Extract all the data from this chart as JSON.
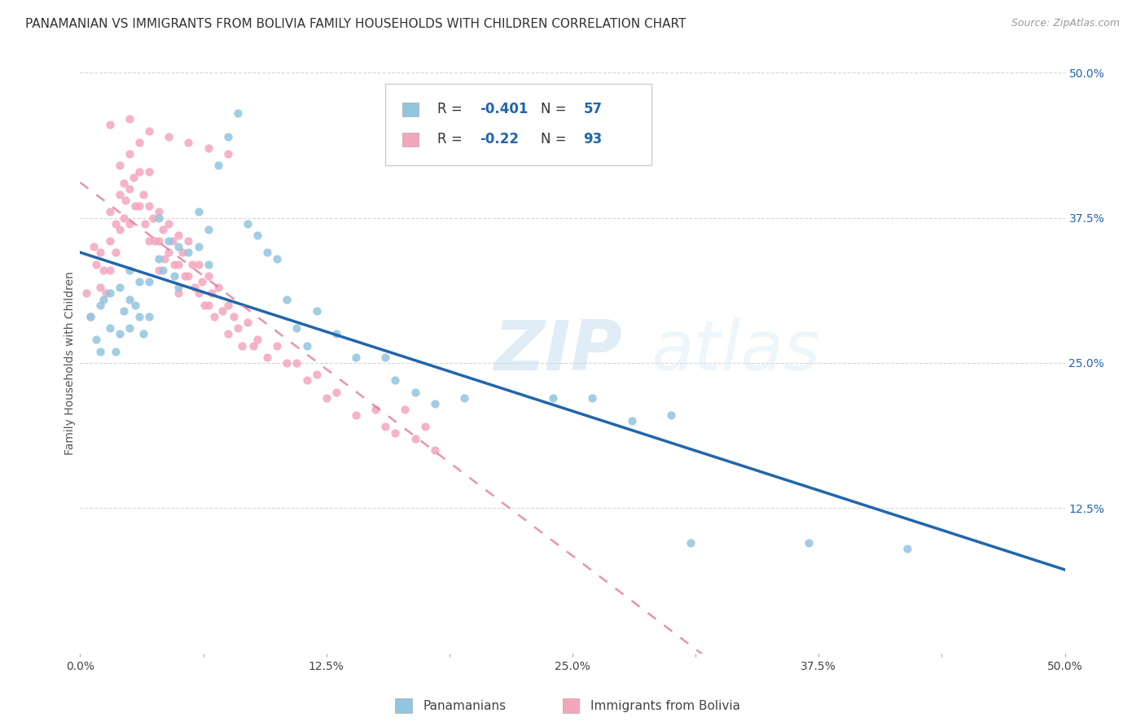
{
  "title": "PANAMANIAN VS IMMIGRANTS FROM BOLIVIA FAMILY HOUSEHOLDS WITH CHILDREN CORRELATION CHART",
  "source": "Source: ZipAtlas.com",
  "ylabel": "Family Households with Children",
  "xlim": [
    0.0,
    0.5
  ],
  "ylim": [
    0.0,
    0.5
  ],
  "xtick_labels": [
    "0.0%",
    "",
    "12.5%",
    "",
    "25.0%",
    "",
    "37.5%",
    "",
    "50.0%"
  ],
  "xtick_vals": [
    0.0,
    0.0625,
    0.125,
    0.1875,
    0.25,
    0.3125,
    0.375,
    0.4375,
    0.5
  ],
  "right_ytick_labels": [
    "50.0%",
    "37.5%",
    "25.0%",
    "12.5%"
  ],
  "right_ytick_vals": [
    0.5,
    0.375,
    0.25,
    0.125
  ],
  "blue_color": "#92c5de",
  "pink_color": "#f4a6bd",
  "blue_line_color": "#2166ac",
  "pink_line_color": "#e07090",
  "r_blue": -0.401,
  "n_blue": 57,
  "r_pink": -0.22,
  "n_pink": 93,
  "blue_scatter_x": [
    0.005,
    0.008,
    0.01,
    0.01,
    0.012,
    0.015,
    0.015,
    0.018,
    0.02,
    0.02,
    0.022,
    0.025,
    0.025,
    0.025,
    0.028,
    0.03,
    0.03,
    0.032,
    0.035,
    0.035,
    0.04,
    0.04,
    0.042,
    0.045,
    0.048,
    0.05,
    0.05,
    0.055,
    0.06,
    0.06,
    0.065,
    0.065,
    0.07,
    0.075,
    0.08,
    0.085,
    0.09,
    0.095,
    0.1,
    0.105,
    0.11,
    0.115,
    0.12,
    0.13,
    0.14,
    0.155,
    0.16,
    0.17,
    0.18,
    0.195,
    0.24,
    0.26,
    0.28,
    0.3,
    0.31,
    0.37,
    0.42
  ],
  "blue_scatter_y": [
    0.29,
    0.27,
    0.3,
    0.26,
    0.305,
    0.31,
    0.28,
    0.26,
    0.315,
    0.275,
    0.295,
    0.33,
    0.305,
    0.28,
    0.3,
    0.32,
    0.29,
    0.275,
    0.32,
    0.29,
    0.375,
    0.34,
    0.33,
    0.355,
    0.325,
    0.35,
    0.315,
    0.345,
    0.38,
    0.35,
    0.365,
    0.335,
    0.42,
    0.445,
    0.465,
    0.37,
    0.36,
    0.345,
    0.34,
    0.305,
    0.28,
    0.265,
    0.295,
    0.275,
    0.255,
    0.255,
    0.235,
    0.225,
    0.215,
    0.22,
    0.22,
    0.22,
    0.2,
    0.205,
    0.095,
    0.095,
    0.09
  ],
  "pink_scatter_x": [
    0.003,
    0.005,
    0.007,
    0.008,
    0.01,
    0.01,
    0.012,
    0.013,
    0.015,
    0.015,
    0.015,
    0.018,
    0.018,
    0.02,
    0.02,
    0.02,
    0.022,
    0.022,
    0.023,
    0.025,
    0.025,
    0.025,
    0.027,
    0.028,
    0.03,
    0.03,
    0.03,
    0.032,
    0.033,
    0.035,
    0.035,
    0.035,
    0.037,
    0.038,
    0.04,
    0.04,
    0.04,
    0.042,
    0.043,
    0.045,
    0.045,
    0.047,
    0.048,
    0.05,
    0.05,
    0.05,
    0.052,
    0.053,
    0.055,
    0.055,
    0.057,
    0.058,
    0.06,
    0.06,
    0.062,
    0.063,
    0.065,
    0.065,
    0.067,
    0.068,
    0.07,
    0.072,
    0.075,
    0.075,
    0.078,
    0.08,
    0.082,
    0.085,
    0.088,
    0.09,
    0.095,
    0.1,
    0.105,
    0.11,
    0.115,
    0.12,
    0.125,
    0.13,
    0.14,
    0.15,
    0.155,
    0.16,
    0.165,
    0.17,
    0.175,
    0.18,
    0.015,
    0.025,
    0.035,
    0.045,
    0.055,
    0.065,
    0.075
  ],
  "pink_scatter_y": [
    0.31,
    0.29,
    0.35,
    0.335,
    0.345,
    0.315,
    0.33,
    0.31,
    0.38,
    0.355,
    0.33,
    0.37,
    0.345,
    0.42,
    0.395,
    0.365,
    0.405,
    0.375,
    0.39,
    0.43,
    0.4,
    0.37,
    0.41,
    0.385,
    0.44,
    0.415,
    0.385,
    0.395,
    0.37,
    0.415,
    0.385,
    0.355,
    0.375,
    0.355,
    0.38,
    0.355,
    0.33,
    0.365,
    0.34,
    0.37,
    0.345,
    0.355,
    0.335,
    0.36,
    0.335,
    0.31,
    0.345,
    0.325,
    0.355,
    0.325,
    0.335,
    0.315,
    0.335,
    0.31,
    0.32,
    0.3,
    0.325,
    0.3,
    0.31,
    0.29,
    0.315,
    0.295,
    0.3,
    0.275,
    0.29,
    0.28,
    0.265,
    0.285,
    0.265,
    0.27,
    0.255,
    0.265,
    0.25,
    0.25,
    0.235,
    0.24,
    0.22,
    0.225,
    0.205,
    0.21,
    0.195,
    0.19,
    0.21,
    0.185,
    0.195,
    0.175,
    0.455,
    0.46,
    0.45,
    0.445,
    0.44,
    0.435,
    0.43
  ],
  "watermark_zip": "ZIP",
  "watermark_atlas": "atlas",
  "legend_label_blue": "Panamanians",
  "legend_label_pink": "Immigrants from Bolivia",
  "grid_color": "#cccccc",
  "background_color": "#ffffff",
  "title_fontsize": 11,
  "axis_label_fontsize": 10,
  "tick_fontsize": 10,
  "right_tick_color": "#2166ac"
}
